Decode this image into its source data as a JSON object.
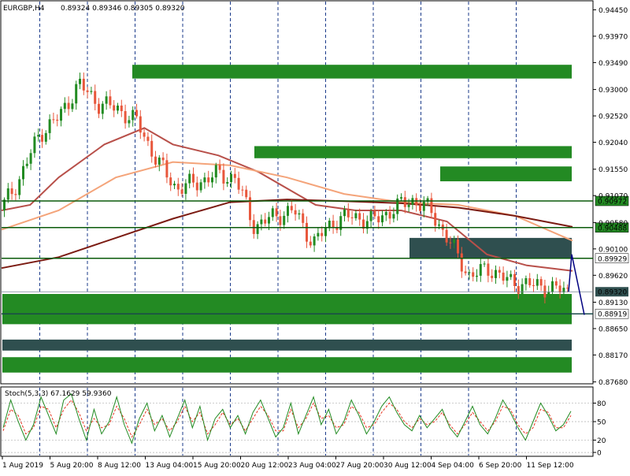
{
  "header": {
    "symbol": "EURGBP,H4",
    "ohlc": "0.89324 0.89346 0.89305 0.89320"
  },
  "colors": {
    "bull": "#228b22",
    "bear": "#e8573c",
    "zone_green": "#238a23",
    "zone_dark": "#2f4f4f",
    "ma_fast": "#b8504a",
    "ma_mid": "#f4a47a",
    "ma_slow": "#7b1b12",
    "stoch_main": "#228b22",
    "stoch_signal": "#e8331e",
    "grid": "#1a3a8a",
    "forecast": "#000080"
  },
  "chart_data": {
    "type": "candlestick",
    "main_panel": {
      "y_tick_labels": [
        "0.94450",
        "0.93970",
        "0.93490",
        "0.93000",
        "0.92520",
        "0.92040",
        "0.91550",
        "0.91070",
        "0.90580",
        "0.90100",
        "0.89620",
        "0.89130",
        "0.88650",
        "0.88170",
        "0.87680"
      ],
      "ylim": [
        0.8766,
        0.946
      ],
      "x_tick_labels": [
        "1 Aug 2019",
        "5 Aug 20:00",
        "8 Aug 12:00",
        "13 Aug 04:00",
        "15 Aug 20:00",
        "20 Aug 12:00",
        "23 Aug 04:00",
        "27 Aug 20:00",
        "30 Aug 12:00",
        "4 Sep 04:00",
        "6 Sep 20:00",
        "11 Sep 12:00"
      ],
      "horizontal_levels": [
        {
          "value": 0.90972,
          "label": "0.90972"
        },
        {
          "value": 0.90488,
          "label": "0.90488"
        },
        {
          "value": 0.89929,
          "label": "0.89929"
        },
        {
          "value": 0.88919,
          "label": "0.88919"
        }
      ],
      "current_price": {
        "value": 0.8932,
        "label": "0.89320"
      },
      "zones": [
        {
          "type": "supply",
          "from": "8 Aug 12:00",
          "y_high": 0.9345,
          "y_low": 0.932
        },
        {
          "type": "supply",
          "from": "20 Aug",
          "y_high": 0.9197,
          "y_low": 0.9175
        },
        {
          "type": "supply",
          "from": "3 Sep",
          "y_high": 0.916,
          "y_low": 0.9133
        },
        {
          "type": "dark",
          "from": "30 Aug",
          "y_high": 0.903,
          "y_low": 0.8993
        },
        {
          "type": "demand",
          "from": "1 Aug",
          "y_high": 0.8928,
          "y_low": 0.8873
        },
        {
          "type": "dark",
          "from": "1 Aug",
          "y_high": 0.8845,
          "y_low": 0.8825
        },
        {
          "type": "demand",
          "from": "1 Aug",
          "y_high": 0.8813,
          "y_low": 0.8785
        }
      ],
      "forecast_path": [
        {
          "t": "11 Sep 20:00",
          "price": 0.8932
        },
        {
          "t": "12 Sep",
          "price": 0.9
        },
        {
          "t": "12 Sep 08:00",
          "price": 0.889
        }
      ],
      "candles_series": {
        "name": "EURGBP H4",
        "close_path": [
          {
            "t": "1 Aug 2019",
            "price": 0.908
          },
          {
            "t": "2 Aug",
            "price": 0.914
          },
          {
            "t": "5 Aug 20:00",
            "price": 0.922
          },
          {
            "t": "7 Aug",
            "price": 0.925
          },
          {
            "t": "8 Aug 12:00",
            "price": 0.931
          },
          {
            "t": "9 Aug",
            "price": 0.9275
          },
          {
            "t": "13 Aug 04:00",
            "price": 0.9265
          },
          {
            "t": "14 Aug",
            "price": 0.924
          },
          {
            "t": "15 Aug",
            "price": 0.917
          },
          {
            "t": "15 Aug 20:00",
            "price": 0.912
          },
          {
            "t": "19 Aug",
            "price": 0.913
          },
          {
            "t": "20 Aug 12:00",
            "price": 0.9145
          },
          {
            "t": "22 Aug",
            "price": 0.914
          },
          {
            "t": "22 Aug 12:00",
            "price": 0.905
          },
          {
            "t": "23 Aug 04:00",
            "price": 0.907
          },
          {
            "t": "26 Aug",
            "price": 0.908
          },
          {
            "t": "27 Aug",
            "price": 0.902
          },
          {
            "t": "27 Aug 20:00",
            "price": 0.906
          },
          {
            "t": "29 Aug",
            "price": 0.907
          },
          {
            "t": "30 Aug",
            "price": 0.906
          },
          {
            "t": "30 Aug 12:00",
            "price": 0.908
          },
          {
            "t": "2 Sep",
            "price": 0.91
          },
          {
            "t": "3 Sep",
            "price": 0.908
          },
          {
            "t": "3 Sep 12:00",
            "price": 0.902
          },
          {
            "t": "4 Sep 04:00",
            "price": 0.896
          },
          {
            "t": "5 Sep",
            "price": 0.8975
          },
          {
            "t": "6 Sep",
            "price": 0.895
          },
          {
            "t": "6 Sep 20:00",
            "price": 0.8945
          },
          {
            "t": "10 Sep",
            "price": 0.894
          },
          {
            "t": "11 Sep 12:00",
            "price": 0.8932
          }
        ]
      },
      "moving_averages": [
        {
          "color": "ma_fast",
          "points": [
            [
              0,
              0.908
            ],
            [
              0.05,
              0.909
            ],
            [
              0.1,
              0.914
            ],
            [
              0.18,
              0.92
            ],
            [
              0.25,
              0.923
            ],
            [
              0.3,
              0.92
            ],
            [
              0.38,
              0.918
            ],
            [
              0.45,
              0.915
            ],
            [
              0.55,
              0.909
            ],
            [
              0.62,
              0.908
            ],
            [
              0.7,
              0.908
            ],
            [
              0.78,
              0.906
            ],
            [
              0.85,
              0.9
            ],
            [
              0.92,
              0.898
            ],
            [
              1.0,
              0.897
            ]
          ]
        },
        {
          "color": "ma_mid",
          "points": [
            [
              0,
              0.9045
            ],
            [
              0.1,
              0.908
            ],
            [
              0.2,
              0.914
            ],
            [
              0.3,
              0.9168
            ],
            [
              0.4,
              0.9162
            ],
            [
              0.5,
              0.914
            ],
            [
              0.6,
              0.911
            ],
            [
              0.7,
              0.9095
            ],
            [
              0.8,
              0.909
            ],
            [
              0.9,
              0.907
            ],
            [
              1.0,
              0.9025
            ]
          ]
        },
        {
          "color": "ma_slow",
          "points": [
            [
              0,
              0.8975
            ],
            [
              0.1,
              0.8995
            ],
            [
              0.2,
              0.903
            ],
            [
              0.3,
              0.9065
            ],
            [
              0.4,
              0.9095
            ],
            [
              0.5,
              0.91
            ],
            [
              0.6,
              0.9097
            ],
            [
              0.7,
              0.9093
            ],
            [
              0.8,
              0.9085
            ],
            [
              0.9,
              0.907
            ],
            [
              1.0,
              0.905
            ]
          ]
        }
      ]
    },
    "stochastic": {
      "label": "Stoch(5,3,3) 67.1629 59.9360",
      "y_tick_labels": [
        "80",
        "50",
        "20",
        "0"
      ],
      "levels": [
        80,
        50,
        20,
        0
      ],
      "ylim": [
        -5,
        105
      ],
      "main": [
        40,
        85,
        50,
        20,
        45,
        90,
        60,
        30,
        85,
        95,
        55,
        20,
        70,
        30,
        50,
        90,
        45,
        15,
        55,
        80,
        35,
        60,
        25,
        55,
        85,
        40,
        75,
        20,
        55,
        70,
        40,
        60,
        30,
        65,
        85,
        55,
        25,
        40,
        80,
        30,
        60,
        90,
        45,
        70,
        30,
        50,
        85,
        60,
        30,
        50,
        75,
        90,
        65,
        45,
        35,
        60,
        40,
        55,
        70,
        40,
        25,
        50,
        75,
        45,
        30,
        55,
        85,
        65,
        40,
        20,
        50,
        80,
        60,
        35,
        45,
        67
      ],
      "signal": [
        35,
        70,
        60,
        30,
        40,
        75,
        70,
        40,
        70,
        85,
        65,
        35,
        55,
        40,
        45,
        75,
        55,
        25,
        45,
        70,
        45,
        55,
        35,
        50,
        75,
        50,
        65,
        30,
        45,
        65,
        45,
        55,
        35,
        55,
        75,
        60,
        35,
        35,
        70,
        40,
        55,
        80,
        55,
        60,
        40,
        45,
        75,
        65,
        40,
        45,
        65,
        80,
        70,
        50,
        40,
        55,
        45,
        50,
        65,
        45,
        30,
        45,
        65,
        50,
        35,
        50,
        75,
        70,
        45,
        30,
        40,
        70,
        65,
        40,
        40,
        60
      ]
    }
  }
}
